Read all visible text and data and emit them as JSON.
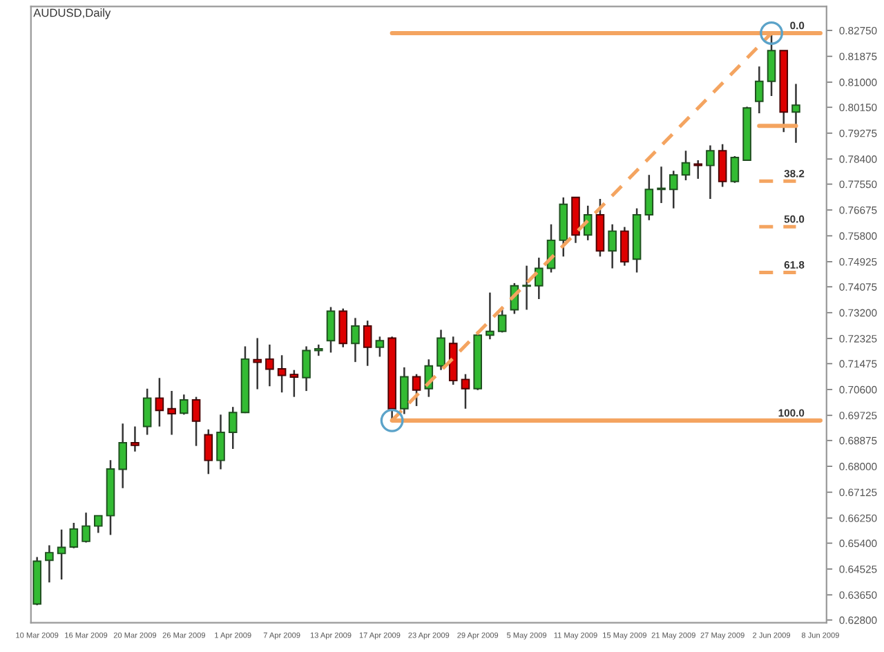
{
  "chart_data": {
    "type": "candlestick",
    "title": "AUDUSD,Daily",
    "categories": [
      "10 Mar 2009",
      null,
      null,
      null,
      "16 Mar 2009",
      null,
      null,
      null,
      "20 Mar 2009",
      null,
      null,
      null,
      "26 Mar 2009",
      null,
      null,
      null,
      "1 Apr 2009",
      null,
      null,
      null,
      "7 Apr 2009",
      null,
      null,
      null,
      "13 Apr 2009",
      null,
      null,
      null,
      "17 Apr 2009",
      null,
      null,
      null,
      "23 Apr 2009",
      null,
      null,
      null,
      "29 Apr 2009",
      null,
      null,
      null,
      "5 May 2009",
      null,
      null,
      null,
      "11 May 2009",
      null,
      null,
      null,
      "15 May 2009",
      null,
      null,
      null,
      "21 May 2009",
      null,
      null,
      null,
      "27 May 2009",
      null,
      null,
      null,
      "2 Jun 2009",
      null,
      null,
      null,
      "8 Jun 2009"
    ],
    "ohlc": [
      [
        0.6334,
        0.6493,
        0.633,
        0.6479
      ],
      [
        0.6482,
        0.6533,
        0.6407,
        0.6508
      ],
      [
        0.6505,
        0.6586,
        0.6417,
        0.6526
      ],
      [
        0.6527,
        0.6609,
        0.6523,
        0.6588
      ],
      [
        0.6546,
        0.6643,
        0.6542,
        0.6598
      ],
      [
        0.6598,
        0.6633,
        0.6575,
        0.6633
      ],
      [
        0.6633,
        0.6821,
        0.6568,
        0.6791
      ],
      [
        0.679,
        0.6945,
        0.6726,
        0.688
      ],
      [
        0.688,
        0.6935,
        0.685,
        0.6871
      ],
      [
        0.6935,
        0.7063,
        0.6907,
        0.7031
      ],
      [
        0.7031,
        0.7099,
        0.6935,
        0.6989
      ],
      [
        0.6995,
        0.7055,
        0.6907,
        0.6978
      ],
      [
        0.698,
        0.7043,
        0.6975,
        0.7025
      ],
      [
        0.7025,
        0.7035,
        0.6869,
        0.6953
      ],
      [
        0.6907,
        0.6925,
        0.6774,
        0.682
      ],
      [
        0.682,
        0.6975,
        0.679,
        0.6915
      ],
      [
        0.6915,
        0.7001,
        0.6859,
        0.6982
      ],
      [
        0.6982,
        0.7206,
        0.698,
        0.7163
      ],
      [
        0.7161,
        0.7234,
        0.7061,
        0.7152
      ],
      [
        0.7163,
        0.7212,
        0.7071,
        0.7129
      ],
      [
        0.713,
        0.7176,
        0.705,
        0.7108
      ],
      [
        0.7111,
        0.7126,
        0.7035,
        0.7102
      ],
      [
        0.71,
        0.7206,
        0.7055,
        0.7192
      ],
      [
        0.7192,
        0.7212,
        0.7174,
        0.7198
      ],
      [
        0.7225,
        0.7339,
        0.7185,
        0.7325
      ],
      [
        0.7325,
        0.7334,
        0.7203,
        0.7216
      ],
      [
        0.7216,
        0.7302,
        0.7153,
        0.7275
      ],
      [
        0.7275,
        0.7293,
        0.714,
        0.7203
      ],
      [
        0.7203,
        0.7239,
        0.7171,
        0.7225
      ],
      [
        0.7234,
        0.7239,
        0.6955,
        0.6995
      ],
      [
        0.6995,
        0.7135,
        0.6977,
        0.7103
      ],
      [
        0.7103,
        0.7112,
        0.7004,
        0.7058
      ],
      [
        0.7063,
        0.7162,
        0.7035,
        0.714
      ],
      [
        0.714,
        0.7262,
        0.7126,
        0.7234
      ],
      [
        0.7216,
        0.7239,
        0.7076,
        0.709
      ],
      [
        0.7094,
        0.7112,
        0.6995,
        0.7063
      ],
      [
        0.7063,
        0.7257,
        0.7058,
        0.7244
      ],
      [
        0.7244,
        0.7388,
        0.723,
        0.7257
      ],
      [
        0.7257,
        0.7339,
        0.7253,
        0.7311
      ],
      [
        0.733,
        0.742,
        0.7316,
        0.7411
      ],
      [
        0.7411,
        0.7479,
        0.733,
        0.7411
      ],
      [
        0.7411,
        0.7506,
        0.7366,
        0.747
      ],
      [
        0.747,
        0.7619,
        0.7456,
        0.7565
      ],
      [
        0.7565,
        0.771,
        0.751,
        0.7687
      ],
      [
        0.771,
        0.771,
        0.7556,
        0.7583
      ],
      [
        0.7583,
        0.7682,
        0.7565,
        0.7651
      ],
      [
        0.7651,
        0.7705,
        0.751,
        0.7529
      ],
      [
        0.7529,
        0.7619,
        0.747,
        0.7596
      ],
      [
        0.7596,
        0.761,
        0.7479,
        0.7492
      ],
      [
        0.7501,
        0.7673,
        0.7456,
        0.7651
      ],
      [
        0.7651,
        0.7786,
        0.7633,
        0.7737
      ],
      [
        0.7737,
        0.7814,
        0.7691,
        0.7741
      ],
      [
        0.7737,
        0.78,
        0.7673,
        0.7786
      ],
      [
        0.7786,
        0.7868,
        0.7768,
        0.7827
      ],
      [
        0.7823,
        0.7836,
        0.7773,
        0.7818
      ],
      [
        0.7818,
        0.7886,
        0.7705,
        0.7868
      ],
      [
        0.7868,
        0.789,
        0.7746,
        0.7764
      ],
      [
        0.7764,
        0.785,
        0.7759,
        0.7845
      ],
      [
        0.7836,
        0.8017,
        0.7836,
        0.8013
      ],
      [
        0.8035,
        0.8153,
        0.7995,
        0.8103
      ],
      [
        0.8103,
        0.8266,
        0.8053,
        0.8207
      ],
      [
        0.8207,
        0.8207,
        0.7931,
        0.7999
      ],
      [
        0.7999,
        0.8094,
        0.7895,
        0.8022
      ],
      null,
      null
    ],
    "colors": [
      "#33bb33",
      "#33bb33",
      "#33bb33",
      "#33bb33",
      "#33bb33",
      "#33bb33",
      "#33bb33",
      "#33bb33",
      "#dd0000",
      "#33bb33",
      "#dd0000",
      "#dd0000",
      "#33bb33",
      "#dd0000",
      "#dd0000",
      "#33bb33",
      "#33bb33",
      "#33bb33",
      "#dd0000",
      "#dd0000",
      "#dd0000",
      "#dd0000",
      "#33bb33",
      "#33bb33",
      "#33bb33",
      "#dd0000",
      "#33bb33",
      "#dd0000",
      "#33bb33",
      "#dd0000",
      "#33bb33",
      "#dd0000",
      "#33bb33",
      "#33bb33",
      "#dd0000",
      "#dd0000",
      "#33bb33",
      "#33bb33",
      "#33bb33",
      "#33bb33",
      "#33bb33",
      "#33bb33",
      "#33bb33",
      "#33bb33",
      "#dd0000",
      "#33bb33",
      "#dd0000",
      "#33bb33",
      "#dd0000",
      "#33bb33",
      "#33bb33",
      "#33bb33",
      "#33bb33",
      "#33bb33",
      "#dd0000",
      "#33bb33",
      "#dd0000",
      "#33bb33",
      "#33bb33",
      "#33bb33",
      "#33bb33",
      "#dd0000",
      "#33bb33",
      null,
      null
    ],
    "series": [
      {
        "type": "line",
        "color": "#f4a460",
        "line_style": "solid",
        "marker": "none",
        "values": [
          null,
          null,
          null,
          null,
          null,
          null,
          null,
          null,
          null,
          null,
          null,
          null,
          null,
          null,
          null,
          null,
          null,
          null,
          null,
          null,
          null,
          null,
          null,
          null,
          null,
          null,
          null,
          null,
          null,
          null,
          null,
          null,
          null,
          null,
          null,
          null,
          null,
          null,
          null,
          null,
          null,
          null,
          null,
          null,
          null,
          null,
          null,
          null,
          null,
          null,
          null,
          null,
          null,
          null,
          null,
          null,
          null,
          null,
          null,
          0.7952,
          0.7952,
          0.7952,
          0.7952,
          null,
          null
        ]
      },
      {
        "type": "line",
        "color": "#f4a460",
        "line_style": "solid",
        "marker": "none",
        "values": [
          null,
          null,
          null,
          null,
          null,
          null,
          null,
          null,
          null,
          null,
          null,
          null,
          null,
          null,
          null,
          null,
          null,
          null,
          null,
          null,
          null,
          null,
          null,
          null,
          null,
          null,
          null,
          null,
          null,
          0.8266,
          0.8266,
          0.8266,
          0.8266,
          0.8266,
          0.8266,
          0.8266,
          0.8266,
          0.8266,
          0.8266,
          0.8266,
          0.8266,
          0.8266,
          0.8266,
          0.8266,
          0.8266,
          0.8266,
          0.8266,
          0.8266,
          0.8266,
          0.8266,
          0.8266,
          0.8266,
          0.8266,
          0.8266,
          0.8266,
          0.8266,
          0.8266,
          0.8266,
          0.8266,
          0.8266,
          0.8266,
          0.8266,
          0.8266,
          0.8266,
          0.8266
        ]
      },
      {
        "type": "line",
        "color": "#f4a460",
        "line_style": "solid",
        "marker": "none",
        "values": [
          null,
          null,
          null,
          null,
          null,
          null,
          null,
          null,
          null,
          null,
          null,
          null,
          null,
          null,
          null,
          null,
          null,
          null,
          null,
          null,
          null,
          null,
          null,
          null,
          null,
          null,
          null,
          null,
          null,
          0.6955,
          0.6955,
          0.6955,
          0.6955,
          0.6955,
          0.6955,
          0.6955,
          0.6955,
          0.6955,
          0.6955,
          0.6955,
          0.6955,
          0.6955,
          0.6955,
          0.6955,
          0.6955,
          0.6955,
          0.6955,
          0.6955,
          0.6955,
          0.6955,
          0.6955,
          0.6955,
          0.6955,
          0.6955,
          0.6955,
          0.6955,
          0.6955,
          0.6955,
          0.6955,
          0.6955,
          0.6955,
          0.6955,
          0.6955,
          0.6955,
          0.6955
        ]
      },
      {
        "type": "line",
        "color": "#f4a460",
        "line_style": "dashed",
        "marker": "none",
        "values": [
          null,
          null,
          null,
          null,
          null,
          null,
          null,
          null,
          null,
          null,
          null,
          null,
          null,
          null,
          null,
          null,
          null,
          null,
          null,
          null,
          null,
          null,
          null,
          null,
          null,
          null,
          null,
          null,
          null,
          null,
          null,
          null,
          null,
          null,
          null,
          null,
          null,
          null,
          null,
          null,
          null,
          null,
          null,
          null,
          null,
          null,
          null,
          null,
          null,
          null,
          null,
          null,
          null,
          null,
          null,
          null,
          null,
          null,
          null,
          0.7765,
          0.7765,
          0.7765,
          0.7765,
          null,
          null
        ]
      },
      {
        "type": "line",
        "color": "#f4a460",
        "line_style": "dashed",
        "marker": "none",
        "values": [
          null,
          null,
          null,
          null,
          null,
          null,
          null,
          null,
          null,
          null,
          null,
          null,
          null,
          null,
          null,
          null,
          null,
          null,
          null,
          null,
          null,
          null,
          null,
          null,
          null,
          null,
          null,
          null,
          null,
          null,
          null,
          null,
          null,
          null,
          null,
          null,
          null,
          null,
          null,
          null,
          null,
          null,
          null,
          null,
          null,
          null,
          null,
          null,
          null,
          null,
          null,
          null,
          null,
          null,
          null,
          null,
          null,
          null,
          null,
          0.7611,
          0.7611,
          0.7611,
          0.7611,
          null,
          null
        ]
      },
      {
        "type": "line",
        "color": "#f4a460",
        "line_style": "dashed",
        "marker": "none",
        "values": [
          null,
          null,
          null,
          null,
          null,
          null,
          null,
          null,
          null,
          null,
          null,
          null,
          null,
          null,
          null,
          null,
          null,
          null,
          null,
          null,
          null,
          null,
          null,
          null,
          null,
          null,
          null,
          null,
          null,
          null,
          null,
          null,
          null,
          null,
          null,
          null,
          null,
          null,
          null,
          null,
          null,
          null,
          null,
          null,
          null,
          null,
          null,
          null,
          null,
          null,
          null,
          null,
          null,
          null,
          null,
          null,
          null,
          null,
          null,
          0.7456,
          0.7456,
          0.7456,
          0.7456,
          null,
          null
        ]
      },
      {
        "type": "line",
        "color": "#f4a460",
        "line_style": "dashed",
        "marker": "circle",
        "values": [
          null,
          null,
          null,
          null,
          null,
          null,
          null,
          null,
          null,
          null,
          null,
          null,
          null,
          null,
          null,
          null,
          null,
          null,
          null,
          null,
          null,
          null,
          null,
          null,
          null,
          null,
          null,
          null,
          null,
          0.6955,
          null,
          null,
          null,
          null,
          null,
          null,
          null,
          null,
          null,
          null,
          null,
          null,
          null,
          null,
          null,
          null,
          null,
          null,
          null,
          null,
          null,
          null,
          null,
          null,
          null,
          null,
          null,
          null,
          null,
          null,
          0.8266,
          null,
          null,
          null,
          null
        ]
      }
    ],
    "ylim": [
      0.6271,
      0.8356
    ],
    "yticks": [
      {
        "value": 0.8275,
        "label": "0.82750"
      },
      {
        "value": 0.81875,
        "label": "0.81875"
      },
      {
        "value": 0.81,
        "label": "0.81000"
      },
      {
        "value": 0.8015,
        "label": "0.80150"
      },
      {
        "value": 0.79275,
        "label": "0.79275"
      },
      {
        "value": 0.784,
        "label": "0.78400"
      },
      {
        "value": 0.7755,
        "label": "0.77550"
      },
      {
        "value": 0.76675,
        "label": "0.76675"
      },
      {
        "value": 0.758,
        "label": "0.75800"
      },
      {
        "value": 0.74925,
        "label": "0.74925"
      },
      {
        "value": 0.74075,
        "label": "0.74075"
      },
      {
        "value": 0.732,
        "label": "0.73200"
      },
      {
        "value": 0.72325,
        "label": "0.72325"
      },
      {
        "value": 0.71475,
        "label": "0.71475"
      },
      {
        "value": 0.706,
        "label": "0.70600"
      },
      {
        "value": 0.69725,
        "label": "0.69725"
      },
      {
        "value": 0.68875,
        "label": "0.68875"
      },
      {
        "value": 0.68,
        "label": "0.68000"
      },
      {
        "value": 0.67125,
        "label": "0.67125"
      },
      {
        "value": 0.6625,
        "label": "0.66250"
      },
      {
        "value": 0.654,
        "label": "0.65400"
      },
      {
        "value": 0.64525,
        "label": "0.64525"
      },
      {
        "value": 0.6365,
        "label": "0.63650"
      },
      {
        "value": 0.628,
        "label": "0.62800"
      }
    ],
    "annotations": [
      {
        "text": "0.0",
        "y": 0.8266
      },
      {
        "text": "38.2",
        "y": 0.7765
      },
      {
        "text": "50.0",
        "y": 0.7611
      },
      {
        "text": "61.8",
        "y": 0.7456
      },
      {
        "text": "100.0",
        "y": 0.6955
      }
    ],
    "grid": false,
    "legend": false
  }
}
